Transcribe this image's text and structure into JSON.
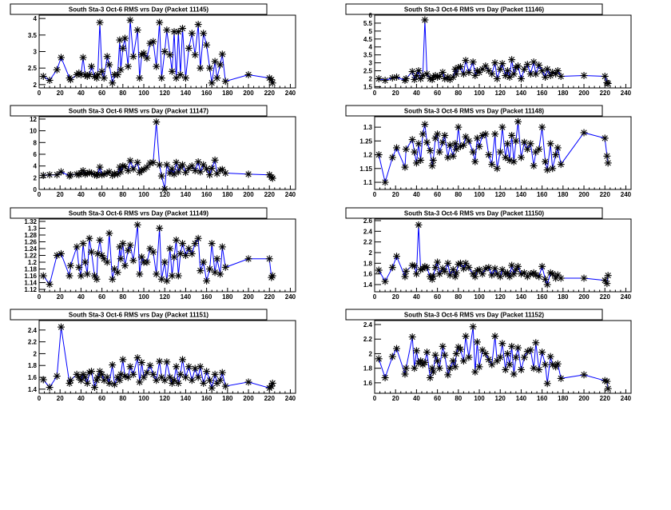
{
  "chart_data": [
    {
      "type": "line",
      "title": "South Sta-3 Oct-6 RMS vrs Day (Packet 11145)",
      "xlabel": "",
      "ylabel": "",
      "xlim": [
        0,
        245
      ],
      "ylim": [
        1.9,
        4.1
      ],
      "xticks": [
        0,
        20,
        40,
        60,
        80,
        100,
        120,
        140,
        160,
        180,
        200,
        220,
        240
      ],
      "yticks": [
        2,
        2.5,
        3,
        3.5,
        4
      ],
      "x": [
        4,
        10,
        17,
        21,
        29,
        30,
        36,
        38,
        40,
        42,
        44,
        46,
        48,
        50,
        53,
        55,
        56,
        58,
        60,
        62,
        65,
        67,
        70,
        72,
        75,
        77,
        78,
        80,
        82,
        85,
        87,
        90,
        94,
        96,
        98,
        100,
        103,
        106,
        109,
        112,
        115,
        117,
        120,
        122,
        125,
        127,
        129,
        131,
        133,
        135,
        137,
        140,
        143,
        146,
        149,
        152,
        154,
        157,
        160,
        163,
        165,
        168,
        170,
        173,
        175,
        178,
        200,
        220,
        222,
        223
      ],
      "y": [
        2.25,
        2.13,
        2.45,
        2.82,
        2.2,
        2.15,
        2.3,
        2.35,
        2.3,
        2.82,
        2.3,
        2.25,
        2.3,
        2.55,
        2.25,
        2.2,
        2.3,
        3.88,
        2.4,
        2.2,
        2.85,
        2.6,
        2.05,
        2.3,
        2.3,
        3.35,
        2.45,
        3.1,
        3.4,
        2.55,
        3.95,
        2.85,
        3.65,
        2.2,
        2.9,
        2.95,
        2.8,
        3.25,
        3.3,
        2.55,
        3.88,
        2.2,
        3.0,
        3.65,
        2.9,
        2.4,
        3.6,
        2.2,
        3.6,
        2.3,
        3.7,
        2.2,
        3.1,
        3.55,
        2.9,
        3.82,
        2.5,
        3.55,
        3.2,
        2.5,
        2.05,
        2.7,
        2.2,
        2.6,
        2.92,
        2.1,
        2.3,
        2.2,
        2.15,
        2.05
      ]
    },
    {
      "type": "line",
      "title": "South Sta-3 Oct-6 RMS vrs Day (Packet 11146)",
      "xlabel": "",
      "ylabel": "",
      "xlim": [
        0,
        245
      ],
      "ylim": [
        1.42,
        6.0
      ],
      "xticks": [
        0,
        20,
        40,
        60,
        80,
        100,
        120,
        140,
        160,
        180,
        200,
        220,
        240
      ],
      "yticks": [
        1.5,
        2,
        2.5,
        3,
        3.5,
        4,
        4.5,
        5,
        5.5,
        6
      ],
      "x": [
        4,
        10,
        17,
        21,
        29,
        30,
        36,
        38,
        40,
        42,
        44,
        46,
        48,
        50,
        53,
        55,
        56,
        58,
        60,
        62,
        65,
        67,
        70,
        72,
        75,
        77,
        78,
        80,
        82,
        85,
        87,
        90,
        94,
        96,
        98,
        100,
        103,
        106,
        109,
        112,
        115,
        117,
        120,
        122,
        125,
        127,
        129,
        131,
        133,
        135,
        137,
        140,
        143,
        146,
        149,
        152,
        154,
        157,
        160,
        163,
        165,
        168,
        170,
        173,
        175,
        178,
        200,
        220,
        222,
        223
      ],
      "y": [
        2.0,
        1.9,
        2.05,
        2.1,
        1.9,
        2.0,
        2.45,
        1.95,
        2.2,
        2.5,
        2.0,
        2.2,
        5.7,
        2.3,
        2.0,
        1.95,
        2.1,
        2.2,
        2.1,
        2.15,
        2.4,
        2.0,
        2.1,
        1.95,
        2.1,
        2.6,
        2.3,
        2.7,
        2.75,
        2.3,
        3.15,
        2.4,
        3.05,
        2.2,
        2.5,
        2.4,
        2.6,
        2.8,
        2.5,
        2.3,
        3.0,
        2.0,
        2.6,
        2.95,
        2.2,
        2.5,
        2.1,
        3.2,
        2.3,
        2.7,
        2.8,
        2.0,
        2.6,
        2.9,
        2.3,
        3.05,
        2.3,
        2.85,
        2.5,
        2.1,
        2.6,
        2.2,
        2.4,
        2.3,
        2.5,
        2.15,
        2.2,
        2.15,
        1.75,
        1.7
      ]
    },
    {
      "type": "line",
      "title": "South Sta-3 Oct-6 RMS vrs Day (Packet 11147)",
      "xlabel": "",
      "ylabel": "",
      "xlim": [
        0,
        245
      ],
      "ylim": [
        0,
        12.4
      ],
      "xticks": [
        0,
        20,
        40,
        60,
        80,
        100,
        120,
        140,
        160,
        180,
        200,
        220,
        240
      ],
      "yticks": [
        0,
        2,
        4,
        6,
        8,
        10,
        12
      ],
      "x": [
        4,
        10,
        17,
        21,
        29,
        30,
        36,
        38,
        40,
        42,
        44,
        46,
        48,
        50,
        53,
        55,
        56,
        58,
        60,
        62,
        65,
        67,
        70,
        72,
        75,
        77,
        78,
        80,
        82,
        85,
        87,
        90,
        94,
        96,
        98,
        100,
        103,
        106,
        109,
        112,
        115,
        117,
        120,
        122,
        125,
        127,
        129,
        131,
        133,
        135,
        137,
        140,
        143,
        146,
        149,
        152,
        154,
        157,
        160,
        163,
        165,
        168,
        170,
        173,
        175,
        178,
        200,
        220,
        222,
        223
      ],
      "y": [
        2.4,
        2.5,
        2.5,
        3.0,
        2.3,
        2.5,
        2.6,
        2.5,
        2.8,
        3.2,
        2.6,
        2.7,
        2.9,
        2.8,
        2.5,
        2.4,
        2.6,
        3.8,
        2.5,
        2.6,
        2.8,
        3.0,
        2.4,
        2.7,
        2.6,
        3.8,
        3.0,
        4.0,
        3.9,
        3.2,
        4.9,
        3.5,
        4.6,
        2.9,
        3.3,
        3.4,
        3.8,
        4.5,
        4.6,
        11.5,
        4.2,
        2.3,
        0.1,
        4.2,
        2.8,
        3.5,
        2.6,
        4.6,
        3.0,
        3.8,
        4.2,
        2.9,
        3.6,
        4.0,
        3.2,
        4.7,
        3.0,
        4.2,
        3.5,
        2.5,
        3.6,
        5.0,
        2.7,
        3.3,
        3.4,
        2.8,
        2.6,
        2.5,
        2.1,
        1.9
      ]
    },
    {
      "type": "line",
      "title": "South Sta-3 Oct-6 RMS vrs Day (Packet 11148)",
      "xlabel": "",
      "ylabel": "",
      "xlim": [
        0,
        245
      ],
      "ylim": [
        1.074,
        1.338
      ],
      "xticks": [
        0,
        20,
        40,
        60,
        80,
        100,
        120,
        140,
        160,
        180,
        200,
        220,
        240
      ],
      "yticks": [
        1.1,
        1.15,
        1.2,
        1.25,
        1.3
      ],
      "x": [
        4,
        10,
        17,
        21,
        29,
        30,
        36,
        38,
        40,
        42,
        44,
        46,
        48,
        50,
        53,
        55,
        56,
        58,
        60,
        62,
        65,
        67,
        70,
        72,
        75,
        77,
        78,
        80,
        82,
        85,
        87,
        90,
        94,
        96,
        98,
        100,
        103,
        106,
        109,
        112,
        115,
        117,
        120,
        122,
        125,
        127,
        129,
        131,
        133,
        135,
        137,
        140,
        143,
        146,
        149,
        152,
        154,
        157,
        160,
        163,
        165,
        168,
        170,
        173,
        175,
        178,
        200,
        220,
        222,
        223
      ],
      "y": [
        1.2,
        1.1,
        1.19,
        1.225,
        1.155,
        1.22,
        1.255,
        1.21,
        1.17,
        1.24,
        1.18,
        1.275,
        1.31,
        1.245,
        1.215,
        1.16,
        1.18,
        1.26,
        1.275,
        1.21,
        1.245,
        1.27,
        1.19,
        1.235,
        1.195,
        1.24,
        1.22,
        1.3,
        1.23,
        1.235,
        1.265,
        1.25,
        1.21,
        1.175,
        1.26,
        1.23,
        1.27,
        1.275,
        1.2,
        1.165,
        1.275,
        1.15,
        1.21,
        1.3,
        1.19,
        1.24,
        1.18,
        1.27,
        1.175,
        1.25,
        1.32,
        1.19,
        1.245,
        1.22,
        1.24,
        1.16,
        1.21,
        1.22,
        1.3,
        1.175,
        1.145,
        1.24,
        1.15,
        1.2,
        1.225,
        1.165,
        1.28,
        1.26,
        1.195,
        1.17
      ]
    },
    {
      "type": "line",
      "title": "South Sta-3 Oct-6 RMS vrs Day (Packet 11149)",
      "xlabel": "",
      "ylabel": "",
      "xlim": [
        0,
        245
      ],
      "ylim": [
        1.113,
        1.327
      ],
      "xticks": [
        0,
        20,
        40,
        60,
        80,
        100,
        120,
        140,
        160,
        180,
        200,
        220,
        240
      ],
      "yticks": [
        1.12,
        1.14,
        1.16,
        1.18,
        1.2,
        1.22,
        1.24,
        1.26,
        1.28,
        1.3,
        1.32
      ],
      "x": [
        4,
        10,
        17,
        21,
        29,
        30,
        36,
        38,
        40,
        42,
        44,
        46,
        48,
        50,
        53,
        55,
        56,
        58,
        60,
        62,
        65,
        67,
        70,
        72,
        75,
        77,
        78,
        80,
        82,
        85,
        87,
        90,
        94,
        96,
        98,
        100,
        103,
        106,
        109,
        112,
        115,
        117,
        120,
        122,
        125,
        127,
        129,
        131,
        133,
        135,
        137,
        140,
        143,
        146,
        149,
        152,
        154,
        157,
        160,
        163,
        165,
        168,
        170,
        173,
        175,
        178,
        200,
        220,
        222,
        223
      ],
      "y": [
        1.16,
        1.135,
        1.22,
        1.225,
        1.16,
        1.19,
        1.245,
        1.185,
        1.16,
        1.255,
        1.2,
        1.165,
        1.27,
        1.23,
        1.16,
        1.15,
        1.225,
        1.265,
        1.22,
        1.21,
        1.2,
        1.285,
        1.15,
        1.18,
        1.17,
        1.245,
        1.21,
        1.255,
        1.19,
        1.235,
        1.25,
        1.205,
        1.31,
        1.165,
        1.215,
        1.2,
        1.2,
        1.24,
        1.23,
        1.165,
        1.3,
        1.15,
        1.2,
        1.145,
        1.24,
        1.16,
        1.215,
        1.265,
        1.16,
        1.225,
        1.255,
        1.22,
        1.24,
        1.225,
        1.255,
        1.27,
        1.175,
        1.2,
        1.145,
        1.18,
        1.255,
        1.17,
        1.21,
        1.165,
        1.245,
        1.185,
        1.21,
        1.21,
        1.155,
        1.16
      ]
    },
    {
      "type": "line",
      "title": "South Sta-3 Oct-6 RMS vrs Day (Packet 11150)",
      "xlabel": "",
      "ylabel": "",
      "xlim": [
        0,
        245
      ],
      "ylim": [
        1.265,
        2.63
      ],
      "xticks": [
        0,
        20,
        40,
        60,
        80,
        100,
        120,
        140,
        160,
        180,
        200,
        220,
        240
      ],
      "yticks": [
        1.4,
        1.6,
        1.8,
        2,
        2.2,
        2.4,
        2.6
      ],
      "x": [
        4,
        10,
        17,
        21,
        29,
        30,
        36,
        38,
        40,
        42,
        44,
        46,
        48,
        50,
        53,
        55,
        56,
        58,
        60,
        62,
        65,
        67,
        70,
        72,
        75,
        77,
        78,
        80,
        82,
        85,
        87,
        90,
        94,
        96,
        98,
        100,
        103,
        106,
        109,
        112,
        115,
        117,
        120,
        122,
        125,
        127,
        129,
        131,
        133,
        135,
        137,
        140,
        143,
        146,
        149,
        152,
        154,
        157,
        160,
        163,
        165,
        168,
        170,
        173,
        175,
        178,
        200,
        220,
        222,
        223
      ],
      "y": [
        1.67,
        1.46,
        1.72,
        1.93,
        1.55,
        1.65,
        1.76,
        1.75,
        1.6,
        2.52,
        1.68,
        1.7,
        1.74,
        1.72,
        1.55,
        1.5,
        1.56,
        1.72,
        1.82,
        1.6,
        1.7,
        1.65,
        1.8,
        1.58,
        1.68,
        1.55,
        1.62,
        1.78,
        1.8,
        1.7,
        1.8,
        1.72,
        1.6,
        1.55,
        1.66,
        1.68,
        1.6,
        1.7,
        1.72,
        1.58,
        1.7,
        1.6,
        1.55,
        1.68,
        1.6,
        1.62,
        1.55,
        1.76,
        1.6,
        1.68,
        1.74,
        1.6,
        1.62,
        1.55,
        1.6,
        1.62,
        1.58,
        1.55,
        1.74,
        1.5,
        1.4,
        1.62,
        1.6,
        1.52,
        1.58,
        1.52,
        1.52,
        1.48,
        1.42,
        1.57
      ]
    },
    {
      "type": "line",
      "title": "South Sta-3 Oct-6 RMS vrs Day (Packet 11151)",
      "xlabel": "",
      "ylabel": "",
      "xlim": [
        0,
        245
      ],
      "ylim": [
        1.33,
        2.56
      ],
      "xticks": [
        0,
        20,
        40,
        60,
        80,
        100,
        120,
        140,
        160,
        180,
        200,
        220,
        240
      ],
      "yticks": [
        1.4,
        1.6,
        1.8,
        2,
        2.2,
        2.4
      ],
      "x": [
        4,
        10,
        17,
        21,
        29,
        30,
        36,
        38,
        40,
        42,
        44,
        46,
        48,
        50,
        53,
        55,
        56,
        58,
        60,
        62,
        65,
        67,
        70,
        72,
        75,
        77,
        78,
        80,
        82,
        85,
        87,
        90,
        94,
        96,
        98,
        100,
        103,
        106,
        109,
        112,
        115,
        117,
        120,
        122,
        125,
        127,
        129,
        131,
        133,
        135,
        137,
        140,
        143,
        146,
        149,
        152,
        154,
        157,
        160,
        163,
        165,
        168,
        170,
        173,
        175,
        178,
        200,
        220,
        222,
        223
      ],
      "y": [
        1.56,
        1.43,
        1.62,
        2.45,
        1.5,
        1.55,
        1.65,
        1.6,
        1.55,
        1.65,
        1.6,
        1.5,
        1.68,
        1.7,
        1.43,
        1.55,
        1.6,
        1.7,
        1.65,
        1.55,
        1.6,
        1.5,
        1.81,
        1.48,
        1.6,
        1.55,
        1.65,
        1.9,
        1.62,
        1.6,
        1.78,
        1.65,
        1.93,
        1.52,
        1.85,
        1.6,
        1.68,
        1.8,
        1.65,
        1.55,
        1.87,
        1.6,
        1.55,
        1.86,
        1.6,
        1.5,
        1.55,
        1.78,
        1.5,
        1.65,
        1.9,
        1.6,
        1.78,
        1.55,
        1.75,
        1.6,
        1.78,
        1.5,
        1.7,
        1.55,
        1.42,
        1.65,
        1.5,
        1.55,
        1.68,
        1.45,
        1.52,
        1.42,
        1.45,
        1.5
      ]
    },
    {
      "type": "line",
      "title": "South Sta-3 Oct-6 RMS vrs Day (Packet 11152)",
      "xlabel": "",
      "ylabel": "",
      "xlim": [
        0,
        245
      ],
      "ylim": [
        1.456,
        2.455
      ],
      "xticks": [
        0,
        20,
        40,
        60,
        80,
        100,
        120,
        140,
        160,
        180,
        200,
        220,
        240
      ],
      "yticks": [
        1.6,
        1.8,
        2,
        2.2,
        2.4
      ],
      "x": [
        4,
        10,
        17,
        21,
        29,
        30,
        36,
        38,
        40,
        42,
        44,
        46,
        48,
        50,
        53,
        55,
        56,
        58,
        60,
        62,
        65,
        67,
        70,
        72,
        75,
        77,
        78,
        80,
        82,
        85,
        87,
        90,
        94,
        96,
        98,
        100,
        103,
        106,
        109,
        112,
        115,
        117,
        120,
        122,
        125,
        127,
        129,
        131,
        133,
        135,
        137,
        140,
        143,
        146,
        149,
        152,
        154,
        157,
        160,
        163,
        165,
        168,
        170,
        173,
        175,
        178,
        200,
        220,
        222,
        223
      ],
      "y": [
        1.93,
        1.67,
        1.96,
        2.07,
        1.72,
        1.8,
        2.23,
        1.8,
        2.04,
        1.87,
        1.9,
        1.85,
        1.88,
        2.02,
        1.67,
        1.8,
        1.75,
        1.98,
        1.9,
        1.8,
        2.1,
        1.98,
        1.71,
        1.8,
        1.9,
        1.82,
        2.0,
        2.09,
        2.06,
        1.9,
        2.24,
        1.95,
        2.37,
        1.75,
        2.16,
        1.82,
        2.05,
        2.0,
        1.92,
        1.85,
        2.24,
        1.9,
        1.95,
        2.14,
        1.78,
        2.0,
        1.85,
        2.1,
        1.72,
        1.95,
        2.08,
        1.78,
        1.95,
        2.03,
        2.05,
        1.8,
        2.15,
        1.78,
        2.02,
        1.85,
        1.59,
        1.96,
        1.85,
        1.82,
        1.86,
        1.66,
        1.71,
        1.63,
        1.62,
        1.52
      ]
    }
  ],
  "colors": {
    "line": "#0000ff",
    "marker": "#000000",
    "frame": "#000000",
    "background": "#ffffff"
  }
}
